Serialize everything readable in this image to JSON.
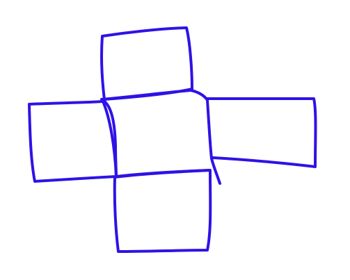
{
  "drawing": {
    "background_color": "#ffffff",
    "ink_color": "#2f12e6",
    "shapes": [
      {
        "name": "top-square"
      },
      {
        "name": "center-square"
      },
      {
        "name": "left-square"
      },
      {
        "name": "right-rectangle"
      },
      {
        "name": "bottom-square"
      }
    ]
  }
}
